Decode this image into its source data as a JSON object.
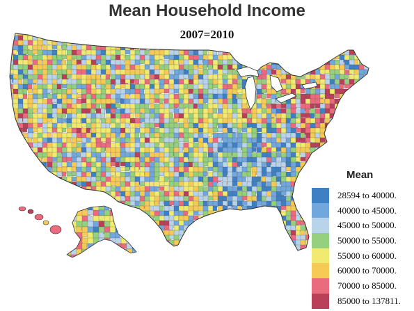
{
  "title": "Mean Household Income",
  "subtitle": "2007=2010",
  "legend": {
    "title": "Mean",
    "bins": [
      {
        "label": "28594 to   40000.",
        "color": "#3f7fc4"
      },
      {
        "label": "40000 to   45000.",
        "color": "#71a7dc"
      },
      {
        "label": "45000 to   50000.",
        "color": "#b9d3ea"
      },
      {
        "label": "50000 to   55000.",
        "color": "#95d07e"
      },
      {
        "label": "55000 to   60000.",
        "color": "#f0ea70"
      },
      {
        "label": "60000 to   70000.",
        "color": "#f6cb55"
      },
      {
        "label": "70000 to   85000.",
        "color": "#ea6a7e"
      },
      {
        "label": "85000 to  137811.",
        "color": "#b84058"
      }
    ]
  }
}
